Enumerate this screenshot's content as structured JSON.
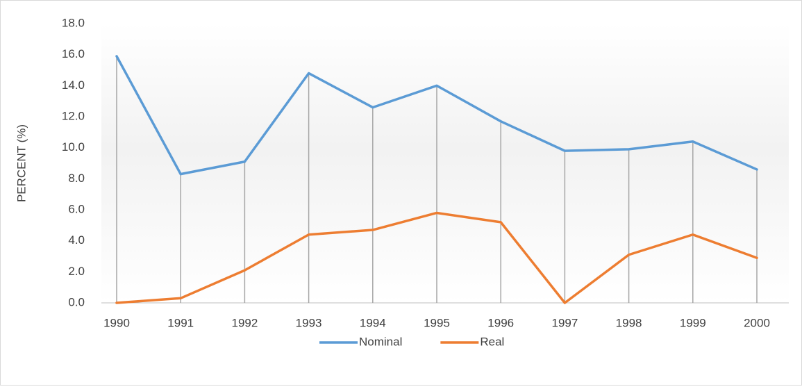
{
  "chart_data": {
    "type": "line",
    "y_axis_label": "PERCENT (%)",
    "categories": [
      "1990",
      "1991",
      "1992",
      "1993",
      "1994",
      "1995",
      "1996",
      "1997",
      "1998",
      "1999",
      "2000"
    ],
    "series": [
      {
        "name": "Nominal",
        "color": "#5b9bd5",
        "values": [
          15.9,
          8.3,
          9.1,
          14.8,
          12.6,
          14.0,
          11.7,
          9.8,
          9.9,
          10.4,
          8.6
        ]
      },
      {
        "name": "Real",
        "color": "#ed7d31",
        "values": [
          0.0,
          0.3,
          2.1,
          4.4,
          4.7,
          5.8,
          5.2,
          0.0,
          3.1,
          4.4,
          2.9
        ]
      }
    ],
    "ylim": [
      0,
      18
    ],
    "yticks": [
      {
        "value": 0,
        "label": "0.0"
      },
      {
        "value": 2,
        "label": "2.0"
      },
      {
        "value": 4,
        "label": "4.0"
      },
      {
        "value": 6,
        "label": "6.0"
      },
      {
        "value": 8,
        "label": "8.0"
      },
      {
        "value": 10,
        "label": "10.0"
      },
      {
        "value": 12,
        "label": "12.0"
      },
      {
        "value": 14,
        "label": "14.0"
      },
      {
        "value": 16,
        "label": "16.0"
      },
      {
        "value": 18,
        "label": "18.0"
      }
    ],
    "drop_lines": true,
    "legend": "bottom"
  }
}
